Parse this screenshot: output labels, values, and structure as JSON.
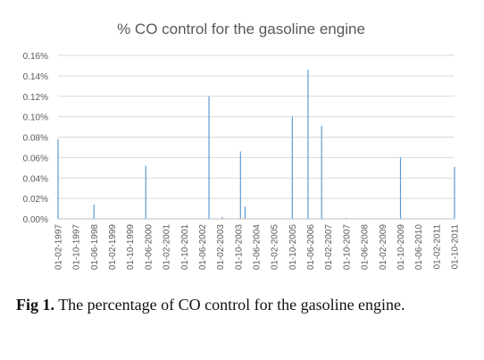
{
  "chart_data": {
    "type": "bar",
    "title": "% CO control for the gasoline engine",
    "xlabel": "",
    "ylabel": "",
    "y_unit": "%",
    "ylim": [
      0,
      0.16
    ],
    "y_ticks": [
      "0.00%",
      "0.02%",
      "0.04%",
      "0.06%",
      "0.08%",
      "0.10%",
      "0.12%",
      "0.14%",
      "0.16%"
    ],
    "x_range": [
      "01-02-1997",
      "01-10-2011"
    ],
    "x_tick_labels": [
      "01-02-1997",
      "01-10-1997",
      "01-06-1998",
      "01-02-1999",
      "01-10-1999",
      "01-06-2000",
      "01-02-2001",
      "01-10-2001",
      "01-06-2002",
      "01-02-2003",
      "01-10-2003",
      "01-06-2004",
      "01-02-2005",
      "01-10-2005",
      "01-06-2006",
      "01-02-2007",
      "01-10-2007",
      "01-06-2008",
      "01-02-2009",
      "01-10-2009",
      "01-06-2010",
      "01-02-2011",
      "01-10-2011"
    ],
    "grid": true,
    "legend": "none",
    "colors": {
      "bars": "#5b9bd5",
      "grid": "#d9d9d9",
      "text": "#595959"
    },
    "points": [
      {
        "date": "1997-02-01",
        "value": 0.078
      },
      {
        "date": "1998-06-01",
        "value": 0.014
      },
      {
        "date": "2000-05-01",
        "value": 0.052
      },
      {
        "date": "2002-09-01",
        "value": 0.12
      },
      {
        "date": "2003-03-01",
        "value": 0.002
      },
      {
        "date": "2003-11-01",
        "value": 0.066
      },
      {
        "date": "2004-01-01",
        "value": 0.012
      },
      {
        "date": "2005-10-01",
        "value": 0.1
      },
      {
        "date": "2006-05-01",
        "value": 0.146
      },
      {
        "date": "2006-11-01",
        "value": 0.091
      },
      {
        "date": "2007-10-01",
        "value": 0.001
      },
      {
        "date": "2009-10-01",
        "value": 0.06
      },
      {
        "date": "2011-10-01",
        "value": 0.051
      }
    ]
  },
  "caption": {
    "label": "Fig 1.",
    "text": "The percentage of CO control for the gasoline engine."
  }
}
